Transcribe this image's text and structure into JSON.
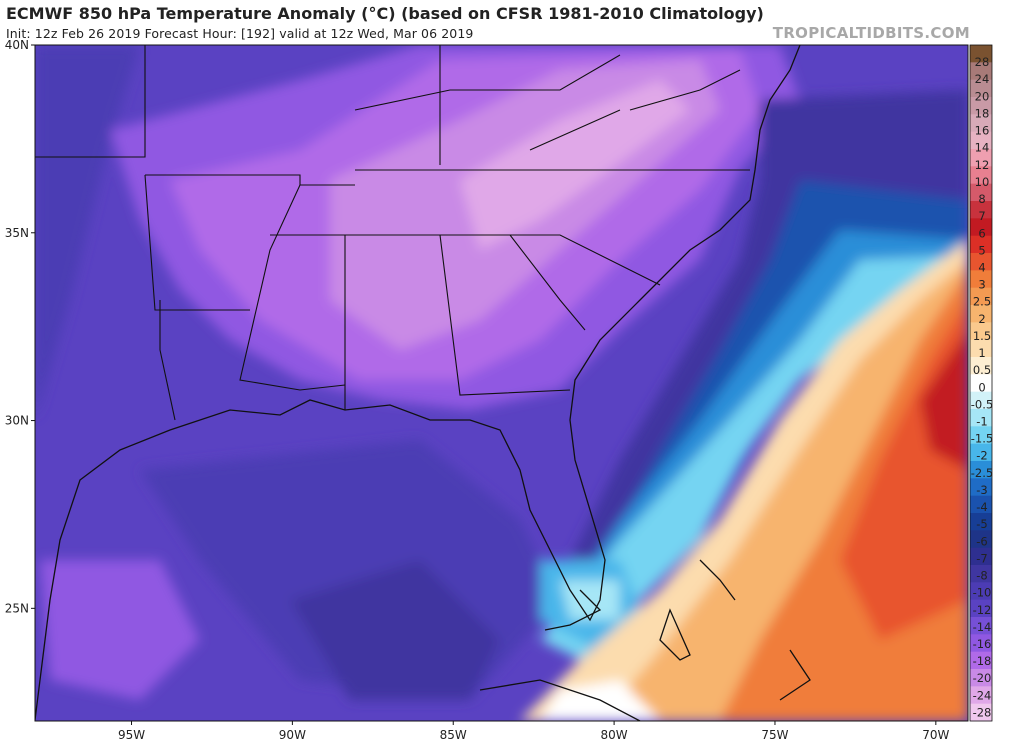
{
  "header": {
    "title": "ECMWF 850 hPa Temperature Anomaly (°C) (based on CFSR 1981-2010 Climatology)",
    "subtitle": "Init: 12z Feb 26 2019   Forecast Hour: [192]   valid at 12z Wed, Mar 06 2019",
    "brand": "TROPICALTIDBITS.COM"
  },
  "map": {
    "lat_labels": [
      "40N",
      "35N",
      "30N",
      "25N"
    ],
    "lon_labels": [
      "95W",
      "90W",
      "85W",
      "80W",
      "75W",
      "70W"
    ],
    "lat_range": [
      22,
      40
    ],
    "lon_range": [
      -98,
      -69
    ],
    "region": "Southeastern United States"
  },
  "colorbar": {
    "labels": [
      "28",
      "24",
      "20",
      "18",
      "16",
      "14",
      "12",
      "10",
      "8",
      "7",
      "6",
      "5",
      "4",
      "3",
      "2.5",
      "2",
      "1.5",
      "1",
      "0.5",
      "0",
      "-0.5",
      "-1",
      "-1.5",
      "-2",
      "-2.5",
      "-3",
      "-4",
      "-5",
      "-6",
      "-7",
      "-8",
      "-10",
      "-12",
      "-14",
      "-16",
      "-18",
      "-20",
      "-24",
      "-28"
    ],
    "colors": [
      "#7a5230",
      "#a87a78",
      "#b98c92",
      "#c99aa6",
      "#d8aab8",
      "#e7b2c2",
      "#ef9fb0",
      "#e88090",
      "#d55a6a",
      "#c8323d",
      "#c21a22",
      "#dc2f26",
      "#e8552f",
      "#f07d3a",
      "#f49a52",
      "#f7b46e",
      "#fac98d",
      "#fcdcae",
      "#fdeed2",
      "#ffffff",
      "#d2f2f8",
      "#a6e6f6",
      "#74d4f2",
      "#48b6ea",
      "#2a8ed8",
      "#1f6cc6",
      "#1a52ae",
      "#173e96",
      "#1e3488",
      "#2e2f90",
      "#3f36a0",
      "#4c3cb4",
      "#5a42c2",
      "#7650d6",
      "#9058e2",
      "#b06ae8",
      "#c98ae6",
      "#e0a8e8",
      "#f0c8ee"
    ],
    "unit": "°C"
  }
}
